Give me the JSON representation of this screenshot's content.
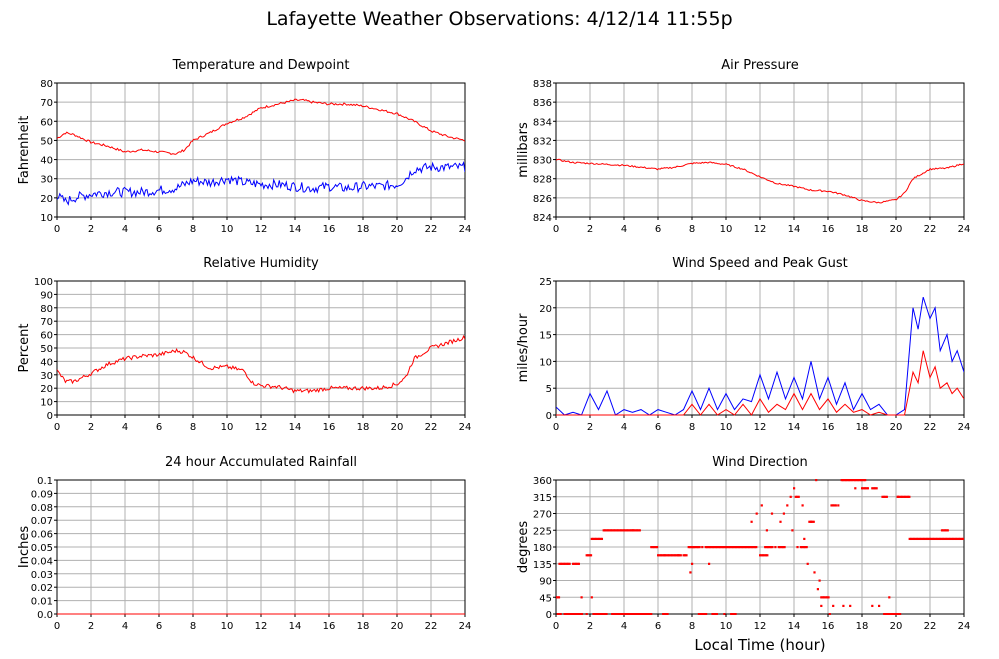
{
  "title": "Lafayette Weather Observations: 4/12/14 11:55p",
  "x_axis_label": "Local Time (hour)",
  "colors": {
    "red": "#ff0000",
    "blue": "#0000ff",
    "grid": "#b0b0b0"
  },
  "chart_data": [
    {
      "type": "line",
      "title": "Temperature and Dewpoint",
      "ylabel": "Fahrenheit",
      "xlim": [
        0,
        24
      ],
      "ylim": [
        10,
        80
      ],
      "x_ticks": [
        0,
        2,
        4,
        6,
        8,
        10,
        12,
        14,
        16,
        18,
        20,
        22,
        24
      ],
      "y_ticks": [
        10,
        20,
        30,
        40,
        50,
        60,
        70,
        80
      ],
      "grid": true,
      "series": [
        {
          "color": "red",
          "noise": 0.6,
          "x": [
            0,
            0.5,
            1,
            2,
            3,
            4,
            5,
            6,
            7,
            7.5,
            8,
            9,
            10,
            11,
            12,
            13,
            14,
            14.5,
            15,
            16,
            17,
            18,
            19,
            20,
            21,
            22,
            23,
            24
          ],
          "y": [
            51,
            54,
            53,
            49,
            47,
            44,
            45,
            44,
            43,
            45,
            50,
            54,
            59,
            62,
            67,
            69,
            71,
            71,
            70,
            69,
            69,
            68,
            66,
            64,
            60,
            55,
            52,
            50
          ]
        },
        {
          "color": "blue",
          "noise": 2.5,
          "x": [
            0,
            0.5,
            1,
            2,
            3,
            4,
            5,
            6,
            7,
            8,
            9,
            10,
            11,
            12,
            13,
            14,
            15,
            16,
            17,
            18,
            19,
            20,
            20.5,
            21,
            22,
            23,
            24
          ],
          "y": [
            21,
            18,
            20,
            22,
            23,
            23,
            23,
            24,
            25,
            29,
            28,
            30,
            28,
            27,
            27,
            26,
            25,
            26,
            25,
            26,
            26,
            27,
            30,
            35,
            36,
            36,
            36
          ]
        }
      ]
    },
    {
      "type": "line",
      "title": "Air Pressure",
      "ylabel": "millibars",
      "xlim": [
        0,
        24
      ],
      "ylim": [
        824,
        838
      ],
      "x_ticks": [
        0,
        2,
        4,
        6,
        8,
        10,
        12,
        14,
        16,
        18,
        20,
        22,
        24
      ],
      "y_ticks": [
        824,
        826,
        828,
        830,
        832,
        834,
        836,
        838
      ],
      "grid": true,
      "series": [
        {
          "color": "red",
          "noise": 0.08,
          "x": [
            0,
            1,
            2,
            3,
            4,
            5,
            6,
            7,
            8,
            9,
            10,
            11,
            12,
            13,
            14,
            15,
            16,
            17,
            18,
            19,
            20,
            20.5,
            21,
            22,
            23,
            24
          ],
          "y": [
            830,
            829.7,
            829.6,
            829.5,
            829.4,
            829.2,
            829,
            829.2,
            829.6,
            829.7,
            829.5,
            829,
            828.2,
            827.5,
            827.2,
            826.8,
            826.7,
            826.3,
            825.7,
            825.5,
            825.8,
            826.5,
            828,
            829,
            829.1,
            829.6
          ]
        }
      ]
    },
    {
      "type": "line",
      "title": "Relative Humidity",
      "ylabel": "Percent",
      "xlim": [
        0,
        24
      ],
      "ylim": [
        0,
        100
      ],
      "x_ticks": [
        0,
        2,
        4,
        6,
        8,
        10,
        12,
        14,
        16,
        18,
        20,
        22,
        24
      ],
      "y_ticks": [
        0,
        10,
        20,
        30,
        40,
        50,
        60,
        70,
        80,
        90,
        100
      ],
      "grid": true,
      "series": [
        {
          "color": "red",
          "noise": 1.5,
          "x": [
            0,
            0.5,
            1,
            2,
            3,
            4,
            5,
            6,
            7,
            7.5,
            8,
            9,
            10,
            11,
            11.5,
            12,
            13,
            14,
            15,
            16,
            17,
            18,
            19,
            20,
            20.5,
            21,
            22,
            23,
            24
          ],
          "y": [
            33,
            25,
            25,
            31,
            38,
            42,
            44,
            45,
            48,
            47,
            43,
            35,
            36,
            33,
            24,
            22,
            21,
            18,
            18,
            20,
            20,
            20,
            20,
            23,
            28,
            42,
            50,
            54,
            58
          ]
        }
      ]
    },
    {
      "type": "line",
      "title": "Wind Speed and Peak Gust",
      "ylabel": "miles/hour",
      "xlim": [
        0,
        24
      ],
      "ylim": [
        0,
        25
      ],
      "x_ticks": [
        0,
        2,
        4,
        6,
        8,
        10,
        12,
        14,
        16,
        18,
        20,
        22,
        24
      ],
      "y_ticks": [
        0,
        5,
        10,
        15,
        20,
        25
      ],
      "grid": true,
      "series": [
        {
          "color": "blue",
          "noise": 0,
          "x": [
            0,
            0.5,
            1,
            1.5,
            2,
            2.5,
            3,
            3.5,
            4,
            4.5,
            5,
            5.5,
            6,
            6.5,
            7,
            7.5,
            8,
            8.5,
            9,
            9.5,
            10,
            10.5,
            11,
            11.5,
            12,
            12.5,
            13,
            13.5,
            14,
            14.5,
            15,
            15.5,
            16,
            16.5,
            17,
            17.5,
            18,
            18.5,
            19,
            19.5,
            20,
            20.5,
            21,
            21.3,
            21.6,
            22,
            22.3,
            22.6,
            23,
            23.3,
            23.6,
            24
          ],
          "y": [
            1.5,
            0,
            0.5,
            0,
            4,
            1,
            4.5,
            0,
            1,
            0.5,
            1,
            0,
            1,
            0.5,
            0,
            1,
            4.5,
            1,
            5,
            1,
            4,
            1,
            3,
            2.5,
            7.5,
            3,
            8,
            3,
            7,
            3,
            10,
            3,
            7,
            2,
            6,
            1,
            4,
            1,
            2,
            0,
            0,
            1,
            20,
            16,
            22,
            18,
            20,
            12,
            15,
            10,
            12,
            8
          ]
        },
        {
          "color": "red",
          "noise": 0,
          "x": [
            0,
            1,
            2,
            3,
            4,
            5,
            6,
            7,
            7.5,
            8,
            8.5,
            9,
            9.5,
            10,
            10.5,
            11,
            11.5,
            12,
            12.5,
            13,
            13.5,
            14,
            14.5,
            15,
            15.5,
            16,
            16.5,
            17,
            17.5,
            18,
            18.5,
            19,
            19.5,
            20,
            20.5,
            21,
            21.3,
            21.6,
            22,
            22.3,
            22.6,
            23,
            23.3,
            23.6,
            24
          ],
          "y": [
            0,
            0,
            0,
            0,
            0,
            0,
            0,
            0,
            0,
            2,
            0,
            2,
            0,
            1,
            0,
            2,
            0,
            3,
            0.5,
            2,
            1,
            4,
            1,
            4,
            1,
            3,
            0.5,
            2,
            0.5,
            1,
            0,
            0.5,
            0,
            0,
            0,
            8,
            6,
            12,
            7,
            9,
            5,
            6,
            4,
            5,
            3
          ]
        }
      ]
    },
    {
      "type": "line",
      "title": "24 hour Accumulated Rainfall",
      "ylabel": "Inches",
      "xlim": [
        0,
        24
      ],
      "ylim": [
        0,
        0.1
      ],
      "x_ticks": [
        0,
        2,
        4,
        6,
        8,
        10,
        12,
        14,
        16,
        18,
        20,
        22,
        24
      ],
      "y_ticks": [
        "0.0",
        "0.01",
        "0.02",
        "0.03",
        "0.04",
        "0.05",
        "0.06",
        "0.07",
        "0.08",
        "0.09",
        "0.1"
      ],
      "grid": true,
      "series": [
        {
          "color": "red",
          "noise": 0,
          "x": [
            0,
            24
          ],
          "y": [
            0,
            0
          ]
        }
      ]
    },
    {
      "type": "scatter",
      "title": "Wind Direction",
      "ylabel": "degrees",
      "xlim": [
        0,
        24
      ],
      "ylim": [
        0,
        360
      ],
      "x_ticks": [
        0,
        2,
        4,
        6,
        8,
        10,
        12,
        14,
        16,
        18,
        20,
        22,
        24
      ],
      "y_ticks": [
        0,
        45,
        90,
        135,
        180,
        225,
        270,
        315,
        360
      ],
      "grid": true,
      "series": [
        {
          "color": "red",
          "segments": [
            [
              0,
              0.2,
              45
            ],
            [
              0.1,
              0.3,
              0
            ],
            [
              0.2,
              0.8,
              135
            ],
            [
              0.5,
              1.6,
              0
            ],
            [
              1,
              1.4,
              135
            ],
            [
              1.8,
              2.1,
              158
            ],
            [
              2.1,
              2.7,
              202
            ],
            [
              2.2,
              3.0,
              0
            ],
            [
              2.8,
              4.5,
              225
            ],
            [
              3.3,
              5.6,
              0
            ],
            [
              4.5,
              5.0,
              225
            ],
            [
              5.6,
              6.0,
              180
            ],
            [
              6,
              6.4,
              158
            ],
            [
              6.4,
              7.4,
              158
            ],
            [
              6.3,
              6.6,
              0
            ],
            [
              7.5,
              7.7,
              158
            ],
            [
              7.8,
              8.1,
              180
            ],
            [
              8.1,
              8.5,
              180
            ],
            [
              8.8,
              11.8,
              180
            ],
            [
              8.4,
              8.9,
              0
            ],
            [
              9.2,
              9.5,
              0
            ],
            [
              10.3,
              10.6,
              0
            ],
            [
              12.0,
              12.5,
              158
            ],
            [
              12.3,
              12.8,
              180
            ],
            [
              13.1,
              13.5,
              180
            ],
            [
              14.1,
              14.3,
              315
            ],
            [
              14.4,
              14.8,
              180
            ],
            [
              14.9,
              15.2,
              248
            ],
            [
              15.6,
              16.1,
              45
            ],
            [
              16.2,
              16.5,
              292
            ],
            [
              16.8,
              17.4,
              360
            ],
            [
              17.5,
              18.2,
              360
            ],
            [
              18.0,
              18.4,
              338
            ],
            [
              18.6,
              18.9,
              338
            ],
            [
              19.2,
              19.5,
              315
            ],
            [
              19.3,
              20.3,
              0
            ],
            [
              20.1,
              20.8,
              315
            ],
            [
              20.8,
              24,
              202
            ],
            [
              22.7,
              23.1,
              225
            ]
          ],
          "points": [
            [
              1.5,
              45
            ],
            [
              1.8,
              0
            ],
            [
              2.1,
              45
            ],
            [
              2.3,
              0
            ],
            [
              3.5,
              0
            ],
            [
              7.2,
              158
            ],
            [
              7.9,
              112
            ],
            [
              8.0,
              135
            ],
            [
              8.6,
              180
            ],
            [
              9.0,
              135
            ],
            [
              9.3,
              0
            ],
            [
              9.9,
              0
            ],
            [
              11.5,
              248
            ],
            [
              11.8,
              270
            ],
            [
              12.1,
              292
            ],
            [
              12.4,
              225
            ],
            [
              12.7,
              270
            ],
            [
              12.9,
              180
            ],
            [
              13.2,
              248
            ],
            [
              13.4,
              270
            ],
            [
              13.6,
              292
            ],
            [
              13.8,
              315
            ],
            [
              13.9,
              225
            ],
            [
              14.0,
              338
            ],
            [
              14.2,
              180
            ],
            [
              14.5,
              292
            ],
            [
              14.6,
              202
            ],
            [
              14.8,
              135
            ],
            [
              15.0,
              248
            ],
            [
              15.2,
              112
            ],
            [
              15.3,
              360
            ],
            [
              15.4,
              67
            ],
            [
              15.5,
              90
            ],
            [
              15.6,
              22
            ],
            [
              16.1,
              0
            ],
            [
              16.3,
              22
            ],
            [
              16.6,
              292
            ],
            [
              16.9,
              22
            ],
            [
              17.3,
              22
            ],
            [
              17.6,
              338
            ],
            [
              18.6,
              22
            ],
            [
              19.0,
              22
            ],
            [
              19.6,
              45
            ],
            [
              20.1,
              315
            ]
          ]
        }
      ]
    }
  ]
}
